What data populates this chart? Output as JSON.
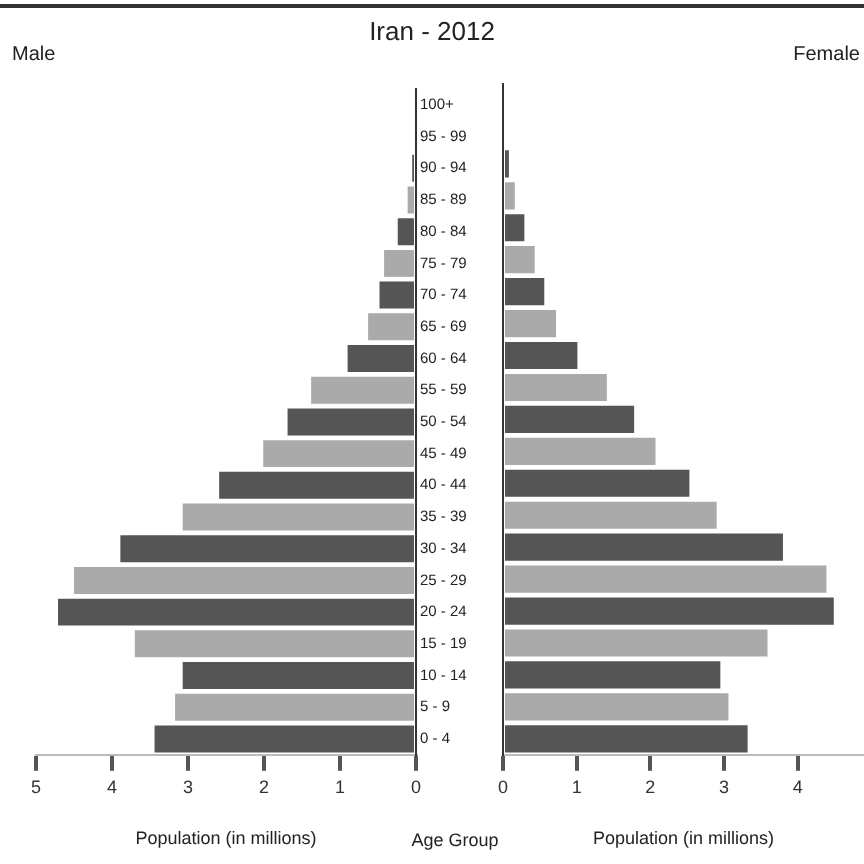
{
  "chart_data": [
    {
      "type": "bar",
      "title": "Iran - 2012",
      "orientation": "horizontal",
      "xlabel": "Population (in millions)",
      "ylabel": "Age Group",
      "categories": [
        "100+",
        "95 - 99",
        "90 - 94",
        "85 - 89",
        "80 - 84",
        "75 - 79",
        "70 - 74",
        "65 - 69",
        "60 - 64",
        "55 - 59",
        "50 - 54",
        "45 - 49",
        "40 - 44",
        "35 - 39",
        "30 - 34",
        "25 - 29",
        "20 - 24",
        "15 - 19",
        "10 - 14",
        "5 - 9",
        "0 - 4"
      ],
      "series": [
        {
          "name": "Male",
          "colors": [
            "#555555",
            "#aaaaaa",
            "#555555",
            "#aaaaaa",
            "#555555",
            "#aaaaaa",
            "#555555",
            "#aaaaaa",
            "#555555",
            "#aaaaaa",
            "#555555",
            "#aaaaaa",
            "#555555",
            "#aaaaaa",
            "#555555",
            "#aaaaaa",
            "#555555",
            "#aaaaaa",
            "#555555",
            "#aaaaaa",
            "#555555"
          ],
          "values": [
            0,
            null,
            0.05,
            0.11,
            0.24,
            0.42,
            0.48,
            0.63,
            0.9,
            1.38,
            1.69,
            2.01,
            2.59,
            3.07,
            3.89,
            4.5,
            4.71,
            3.7,
            3.07,
            3.17,
            3.44
          ]
        }
      ],
      "xlim": [
        5,
        0
      ],
      "xticks": [
        5,
        4,
        3,
        2,
        1,
        0
      ],
      "grid": false,
      "legend": false
    },
    {
      "type": "bar",
      "orientation": "horizontal",
      "xlabel": "Population (in millions)",
      "tick_labels": "x",
      "categories": [
        null,
        null,
        null,
        null,
        null,
        null,
        null,
        null,
        null,
        null,
        null,
        null,
        null,
        null,
        null,
        null,
        null,
        null,
        null,
        null,
        null
      ],
      "series": [
        {
          "name": "Female",
          "colors": [
            "#555555",
            "#aaaaaa",
            "#555555",
            "#aaaaaa",
            "#555555",
            "#aaaaaa",
            "#555555",
            "#aaaaaa",
            "#555555",
            "#aaaaaa",
            "#555555",
            "#aaaaaa",
            "#555555",
            "#aaaaaa",
            "#555555",
            "#aaaaaa",
            "#555555",
            "#aaaaaa",
            "#555555",
            "#aaaaaa",
            "#555555"
          ],
          "values": [
            0,
            null,
            0.08,
            0.16,
            0.29,
            0.43,
            0.56,
            0.72,
            1.01,
            1.41,
            1.78,
            2.07,
            2.53,
            2.9,
            3.8,
            4.39,
            4.49,
            3.59,
            2.95,
            3.06,
            3.32
          ]
        }
      ],
      "xlim": [
        0,
        4.9
      ],
      "xticks": [
        0,
        1,
        2,
        3,
        4
      ],
      "grid": false,
      "legend": false
    }
  ]
}
